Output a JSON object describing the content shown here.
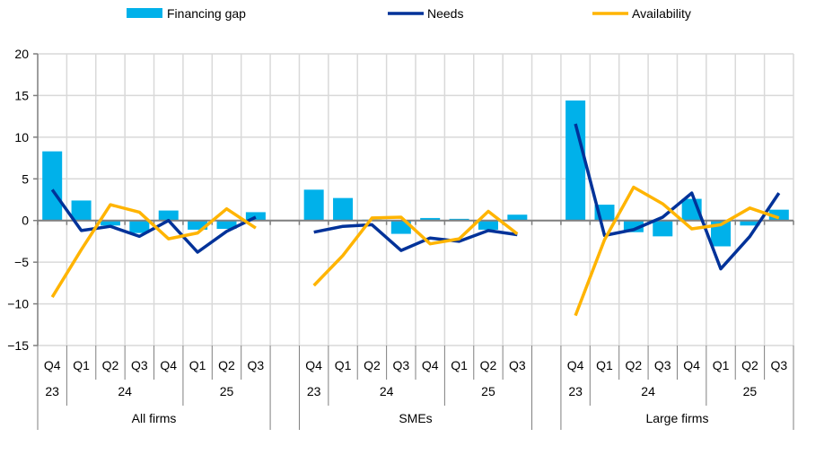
{
  "chart_data": {
    "type": "bar+line",
    "title": "",
    "ylim": [
      -15,
      20
    ],
    "yticks": [
      20,
      15,
      10,
      5,
      0,
      -5,
      -10,
      -15
    ],
    "ytick_labels": [
      "20",
      "15",
      "10",
      "5",
      "0",
      "−5",
      "−10",
      "−15"
    ],
    "grid": true,
    "legend_position": "top",
    "colors": {
      "Financing gap": "#00b1ea",
      "Needs": "#003299",
      "Availability": "#ffb400"
    },
    "groups": [
      {
        "label": "All firms",
        "years": [
          {
            "label": "23",
            "span": 1
          },
          {
            "label": "24",
            "span": 4
          },
          {
            "label": "25",
            "span": 3
          }
        ],
        "quarters": [
          "Q4",
          "Q1",
          "Q2",
          "Q3",
          "Q4",
          "Q1",
          "Q2",
          "Q3"
        ],
        "financing_gap": [
          8.3,
          2.4,
          -0.6,
          -1.5,
          1.2,
          -1.1,
          -1.0,
          1.0
        ],
        "needs": [
          3.7,
          -1.2,
          -0.7,
          -1.9,
          0.0,
          -3.8,
          -1.3,
          0.4
        ],
        "availability": [
          -9.2,
          -3.5,
          1.9,
          1.0,
          -2.2,
          -1.5,
          1.4,
          -0.9
        ]
      },
      {
        "label": "SMEs",
        "years": [
          {
            "label": "23",
            "span": 1
          },
          {
            "label": "24",
            "span": 4
          },
          {
            "label": "25",
            "span": 3
          }
        ],
        "quarters": [
          "Q4",
          "Q1",
          "Q2",
          "Q3",
          "Q4",
          "Q1",
          "Q2",
          "Q3"
        ],
        "financing_gap": [
          3.7,
          2.7,
          0.1,
          -1.6,
          0.3,
          0.2,
          -1.1,
          0.7
        ],
        "needs": [
          -1.4,
          -0.7,
          -0.5,
          -3.6,
          -2.1,
          -2.5,
          -1.2,
          -1.7
        ],
        "availability": [
          -7.8,
          -4.2,
          0.3,
          0.4,
          -2.8,
          -2.2,
          1.1,
          -1.6
        ]
      },
      {
        "label": "Large firms",
        "years": [
          {
            "label": "23",
            "span": 1
          },
          {
            "label": "24",
            "span": 4
          },
          {
            "label": "25",
            "span": 3
          }
        ],
        "quarters": [
          "Q4",
          "Q1",
          "Q2",
          "Q3",
          "Q4",
          "Q1",
          "Q2",
          "Q3"
        ],
        "financing_gap": [
          14.4,
          1.9,
          -1.4,
          -1.9,
          2.6,
          -3.1,
          -0.6,
          1.3
        ],
        "needs": [
          11.6,
          -1.8,
          -1.1,
          0.4,
          3.3,
          -5.8,
          -1.9,
          3.3
        ],
        "availability": [
          -11.4,
          -2.3,
          4.0,
          2.0,
          -1.0,
          -0.5,
          1.5,
          0.3
        ]
      }
    ],
    "legend": [
      {
        "name": "Financing gap",
        "kind": "bar"
      },
      {
        "name": "Needs",
        "kind": "line"
      },
      {
        "name": "Availability",
        "kind": "line"
      }
    ]
  }
}
